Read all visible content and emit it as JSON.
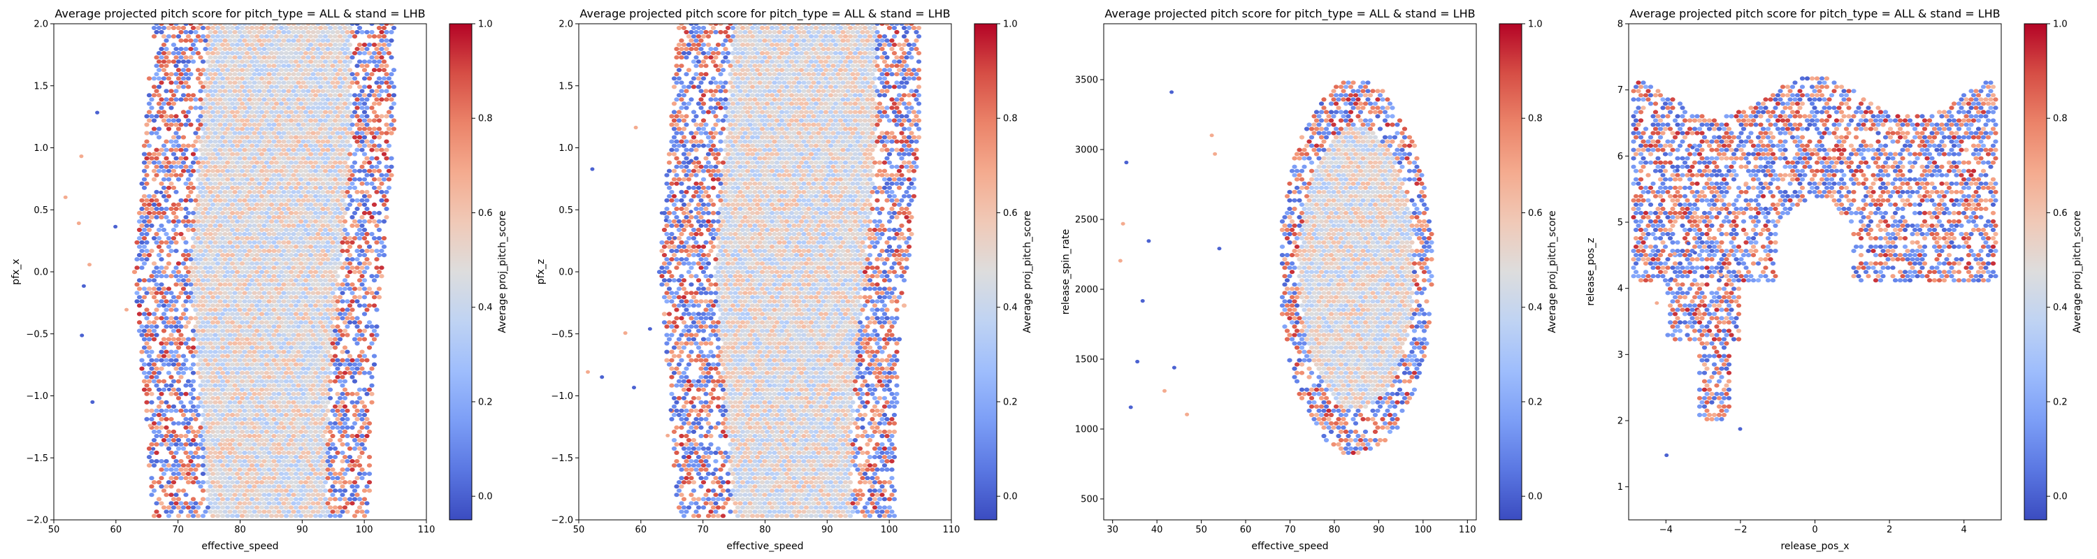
{
  "chart_data": [
    {
      "type": "hexbin",
      "title": "Average projected pitch score for pitch_type = ALL & stand = LHB",
      "xlabel": "effective_speed",
      "ylabel": "pfx_x",
      "xlim": [
        50,
        110
      ],
      "ylim": [
        -2.0,
        2.0
      ],
      "xticks": [
        50,
        60,
        70,
        80,
        90,
        100,
        110
      ],
      "yticks": [
        -2.0,
        -1.5,
        -1.0,
        -0.5,
        0.0,
        0.5,
        1.0,
        1.5,
        2.0
      ],
      "xtick_labels": [
        "50",
        "60",
        "70",
        "80",
        "90",
        "100",
        "110"
      ],
      "ytick_labels": [
        "−2.0",
        "−1.5",
        "−1.0",
        "−0.5",
        "0.0",
        "0.5",
        "1.0",
        "1.5",
        "2.0"
      ],
      "colorbar": {
        "label": "Average proj_pitch_score",
        "range": [
          -0.05,
          1.0
        ],
        "ticks": [
          0.0,
          0.2,
          0.4,
          0.6,
          0.8,
          1.0
        ],
        "tick_labels": [
          "0.0",
          "0.2",
          "0.4",
          "0.6",
          "0.8",
          "1.0"
        ],
        "colormap": "coolwarm"
      },
      "grid": false
    },
    {
      "type": "hexbin",
      "title": "Average projected pitch score for pitch_type = ALL & stand = LHB",
      "xlabel": "effective_speed",
      "ylabel": "pfx_z",
      "xlim": [
        50,
        110
      ],
      "ylim": [
        -2.0,
        2.0
      ],
      "xticks": [
        50,
        60,
        70,
        80,
        90,
        100,
        110
      ],
      "yticks": [
        -2.0,
        -1.5,
        -1.0,
        -0.5,
        0.0,
        0.5,
        1.0,
        1.5,
        2.0
      ],
      "xtick_labels": [
        "50",
        "60",
        "70",
        "80",
        "90",
        "100",
        "110"
      ],
      "ytick_labels": [
        "−2.0",
        "−1.5",
        "−1.0",
        "−0.5",
        "0.0",
        "0.5",
        "1.0",
        "1.5",
        "2.0"
      ],
      "colorbar": {
        "label": "Average proj_pitch_score",
        "range": [
          -0.05,
          1.0
        ],
        "ticks": [
          0.0,
          0.2,
          0.4,
          0.6,
          0.8,
          1.0
        ],
        "tick_labels": [
          "0.0",
          "0.2",
          "0.4",
          "0.6",
          "0.8",
          "1.0"
        ],
        "colormap": "coolwarm"
      },
      "grid": false
    },
    {
      "type": "hexbin",
      "title": "Average projected pitch score for pitch_type = ALL & stand = LHB",
      "xlabel": "effective_speed",
      "ylabel": "release_spin_rate",
      "xlim": [
        28,
        112
      ],
      "ylim": [
        350,
        3900
      ],
      "xticks": [
        30,
        40,
        50,
        60,
        70,
        80,
        90,
        100,
        110
      ],
      "yticks": [
        500,
        1000,
        1500,
        2000,
        2500,
        3000,
        3500
      ],
      "xtick_labels": [
        "30",
        "40",
        "50",
        "60",
        "70",
        "80",
        "90",
        "100",
        "110"
      ],
      "ytick_labels": [
        "500",
        "1000",
        "1500",
        "2000",
        "2500",
        "3000",
        "3500"
      ],
      "colorbar": {
        "label": "Average proj_pitch_score",
        "range": [
          -0.05,
          1.0
        ],
        "ticks": [
          0.0,
          0.2,
          0.4,
          0.6,
          0.8,
          1.0
        ],
        "tick_labels": [
          "0.0",
          "0.2",
          "0.4",
          "0.6",
          "0.8",
          "1.0"
        ],
        "colormap": "coolwarm"
      },
      "grid": false
    },
    {
      "type": "hexbin",
      "title": "Average projected pitch score for pitch_type = ALL & stand = LHB",
      "xlabel": "release_pos_x",
      "ylabel": "release_pos_z",
      "xlim": [
        -5,
        5
      ],
      "ylim": [
        0.5,
        8
      ],
      "xticks": [
        -4,
        -2,
        0,
        2,
        4
      ],
      "yticks": [
        1,
        2,
        3,
        4,
        5,
        6,
        7,
        8
      ],
      "xtick_labels": [
        "−4",
        "−2",
        "0",
        "2",
        "4"
      ],
      "ytick_labels": [
        "1",
        "2",
        "3",
        "4",
        "5",
        "6",
        "7",
        "8"
      ],
      "colorbar": {
        "label": "Average proj_pitch_score",
        "range": [
          -0.05,
          1.0
        ],
        "ticks": [
          0.0,
          0.2,
          0.4,
          0.6,
          0.8,
          1.0
        ],
        "tick_labels": [
          "0.0",
          "0.2",
          "0.4",
          "0.6",
          "0.8",
          "1.0"
        ],
        "colormap": "coolwarm"
      },
      "grid": false
    }
  ]
}
